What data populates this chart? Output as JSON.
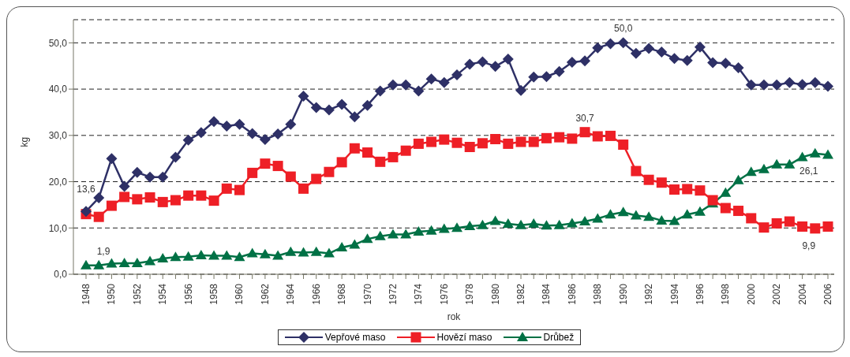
{
  "chart_data": {
    "type": "line",
    "xlabel": "rok",
    "ylabel": "kg",
    "categories": [
      "1948",
      null,
      "1950",
      null,
      "1952",
      null,
      "1954",
      null,
      "1956",
      null,
      "1958",
      null,
      "1960",
      null,
      "1962",
      null,
      "1964",
      null,
      "1966",
      null,
      "1968",
      null,
      "1970",
      null,
      "1972",
      null,
      "1974",
      null,
      "1976",
      null,
      "1978",
      null,
      "1980",
      null,
      "1982",
      null,
      "1984",
      null,
      "1986",
      null,
      "1988",
      null,
      "1990",
      null,
      "1992",
      null,
      "1994",
      null,
      "1996",
      null,
      "1998",
      null,
      "2000",
      null,
      "2002",
      null,
      "2004",
      null,
      "2006"
    ],
    "series": [
      {
        "name": "Vepřové maso",
        "color": "#2e3066",
        "marker": "diamond",
        "values": [
          13.6,
          16.5,
          25.0,
          19.0,
          22.0,
          21.0,
          21.0,
          25.3,
          29.0,
          30.6,
          33.0,
          32.0,
          32.4,
          30.4,
          29.1,
          30.3,
          32.4,
          38.5,
          36.0,
          35.5,
          36.7,
          34.0,
          36.5,
          39.6,
          40.9,
          40.9,
          39.6,
          42.2,
          41.4,
          43.1,
          45.4,
          45.9,
          44.9,
          46.5,
          39.7,
          42.6,
          42.7,
          43.8,
          45.8,
          46.1,
          48.9,
          49.8,
          50.0,
          47.7,
          48.8,
          48.0,
          46.6,
          46.2,
          49.1,
          45.7,
          45.6,
          44.6,
          40.9,
          40.9,
          40.9,
          41.4,
          41.0,
          41.4,
          40.6
        ]
      },
      {
        "name": "Hovězí maso",
        "color": "#ee1f26",
        "marker": "square",
        "values": [
          13.0,
          12.4,
          14.8,
          16.7,
          16.2,
          16.6,
          15.6,
          16.0,
          17.0,
          17.0,
          15.9,
          18.5,
          18.2,
          21.9,
          23.9,
          23.4,
          21.1,
          18.5,
          20.6,
          22.1,
          24.2,
          27.2,
          26.3,
          24.3,
          25.3,
          26.7,
          28.2,
          28.6,
          29.1,
          28.4,
          27.5,
          28.3,
          29.2,
          28.2,
          28.6,
          28.6,
          29.4,
          29.6,
          29.3,
          30.7,
          29.8,
          29.9,
          28.0,
          22.3,
          20.4,
          19.8,
          18.3,
          18.4,
          18.1,
          16.0,
          14.3,
          13.7,
          12.1,
          10.1,
          11.0,
          11.4,
          10.3,
          9.9,
          10.3
        ]
      },
      {
        "name": "Drůbež",
        "color": "#007145",
        "marker": "triangle",
        "values": [
          1.9,
          1.9,
          2.3,
          2.4,
          2.4,
          2.8,
          3.4,
          3.7,
          3.8,
          4.1,
          4.0,
          4.0,
          3.7,
          4.5,
          4.3,
          4.0,
          4.8,
          4.7,
          4.8,
          4.5,
          5.8,
          6.4,
          7.6,
          8.2,
          8.6,
          8.6,
          9.2,
          9.4,
          9.8,
          10.0,
          10.4,
          10.6,
          11.5,
          10.9,
          10.6,
          10.9,
          10.5,
          10.6,
          11.0,
          11.4,
          12.0,
          12.9,
          13.4,
          12.7,
          12.4,
          11.6,
          11.5,
          12.9,
          13.5,
          15.3,
          17.6,
          20.3,
          22.1,
          22.7,
          23.7,
          23.7,
          25.3,
          26.1,
          25.8
        ]
      }
    ],
    "ylim": [
      0,
      55
    ],
    "yticks": [
      {
        "value": 0,
        "label": "0,0"
      },
      {
        "value": 10,
        "label": "10,0"
      },
      {
        "value": 20,
        "label": "20,0"
      },
      {
        "value": 30,
        "label": "30,0"
      },
      {
        "value": 40,
        "label": "40,0"
      },
      {
        "value": 50,
        "label": "50,0"
      }
    ],
    "grid": "y",
    "line_style": "solid",
    "legend": "bottom",
    "annotations": [
      {
        "text": "13,6",
        "x": "1948",
        "y": 13.6
      },
      {
        "text": "1,9",
        "x": "1948",
        "y": 1.9
      },
      {
        "text": "50,0",
        "x": "1990",
        "y": 50.0
      },
      {
        "text": "30,7",
        "y": 30.7
      },
      {
        "text": "26,1",
        "y": 26.1
      },
      {
        "text": "9,9",
        "y": 9.9
      }
    ]
  }
}
